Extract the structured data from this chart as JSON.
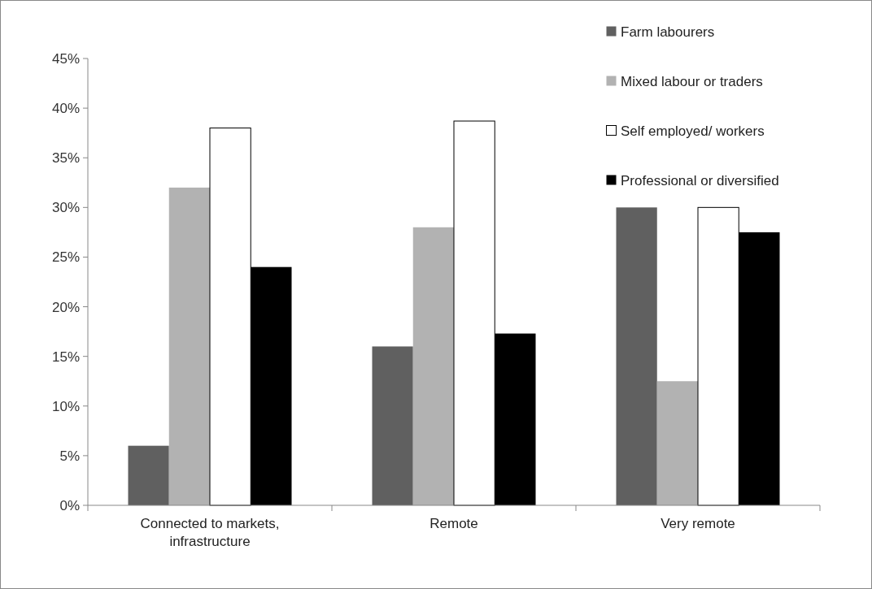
{
  "chart_data": {
    "type": "bar",
    "categories": [
      "Connected to markets, infrastructure",
      "Remote",
      "Very remote"
    ],
    "series": [
      {
        "name": "Farm labourers",
        "color": "#606060",
        "values": [
          6,
          16,
          30
        ]
      },
      {
        "name": "Mixed labour or traders",
        "color": "#b2b2b2",
        "values": [
          32,
          28,
          12.5
        ]
      },
      {
        "name": "Self employed/ workers",
        "color": "#ffffff",
        "values": [
          38,
          38.7,
          30
        ]
      },
      {
        "name": "Professional or diversified",
        "color": "#000000",
        "values": [
          24,
          17.3,
          27.5
        ]
      }
    ],
    "ylim": [
      0,
      45
    ],
    "yticks": [
      {
        "value": 0,
        "label": "0%"
      },
      {
        "value": 5,
        "label": "5%"
      },
      {
        "value": 10,
        "label": "10%"
      },
      {
        "value": 15,
        "label": "15%"
      },
      {
        "value": 20,
        "label": "20%"
      },
      {
        "value": 25,
        "label": "25%"
      },
      {
        "value": 30,
        "label": "30%"
      },
      {
        "value": 35,
        "label": "35%"
      },
      {
        "value": 40,
        "label": "40%"
      },
      {
        "value": 45,
        "label": "45%"
      }
    ],
    "grid": false,
    "legend": "top right"
  }
}
